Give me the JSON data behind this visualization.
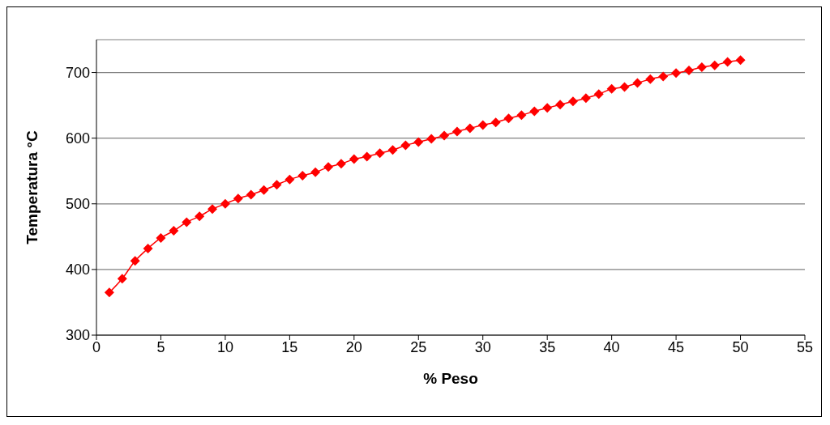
{
  "chart_data": {
    "type": "line",
    "xlabel": "% Peso",
    "ylabel": "Temperatura °C",
    "x": [
      1,
      2,
      3,
      4,
      5,
      6,
      7,
      8,
      9,
      10,
      11,
      12,
      13,
      14,
      15,
      16,
      17,
      18,
      19,
      20,
      21,
      22,
      23,
      24,
      25,
      26,
      27,
      28,
      29,
      30,
      31,
      32,
      33,
      34,
      35,
      36,
      37,
      38,
      39,
      40,
      41,
      42,
      43,
      44,
      45,
      46,
      47,
      48,
      49,
      50
    ],
    "series": [
      {
        "color": "#ff0000",
        "values": [
          365,
          386,
          413,
          432,
          448,
          459,
          472,
          481,
          492,
          500,
          508,
          514,
          521,
          529,
          537,
          543,
          548,
          556,
          561,
          568,
          572,
          577,
          582,
          589,
          594,
          599,
          604,
          610,
          615,
          620,
          624,
          630,
          635,
          641,
          646,
          651,
          656,
          661,
          667,
          675,
          678,
          684,
          690,
          694,
          699,
          703,
          708,
          711,
          716,
          719
        ]
      }
    ],
    "xlim": [
      0,
      55
    ],
    "xticks": [
      0,
      5,
      10,
      15,
      20,
      25,
      30,
      35,
      40,
      45,
      50,
      55
    ],
    "ylim": [
      300,
      750
    ],
    "yticks": [
      300,
      400,
      500,
      600,
      700
    ],
    "grid": "y",
    "marker": "diamond",
    "line_style": "solid",
    "legend": false
  }
}
